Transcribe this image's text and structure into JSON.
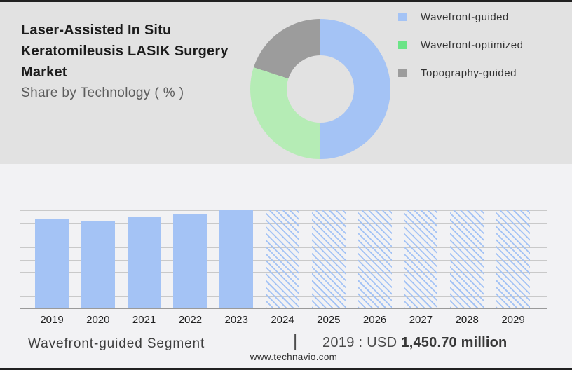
{
  "colors": {
    "accent_blue": "#a4c3f5",
    "donut_green": "#b5ecb5",
    "legend_green": "#6be487",
    "gray": "#9c9c9c",
    "header_bg": "#e2e2e2",
    "chart_bg": "#f2f2f4",
    "gridline": "#c9c9c9",
    "axis": "#9a9a9a"
  },
  "header": {
    "title": "Laser-Assisted In Situ Keratomileusis LASIK Surgery Market",
    "subtitle": "Share by Technology ( % )"
  },
  "legend": {
    "items": [
      {
        "label": "Wavefront-guided",
        "color": "#a4c3f5",
        "icon": "blue-square-swatch"
      },
      {
        "label": "Wavefront-optimized",
        "color": "#6be487",
        "icon": "green-square-swatch"
      },
      {
        "label": "Topography-guided",
        "color": "#9c9c9c",
        "icon": "gray-square-swatch"
      }
    ]
  },
  "chart_data": [
    {
      "type": "pie",
      "variant": "donut",
      "title": "Share by Technology ( % )",
      "direction": "clockwise",
      "start_angle_deg": 0,
      "slices": [
        {
          "label": "Wavefront-guided",
          "value": 50,
          "color": "#a4c3f5"
        },
        {
          "label": "Wavefront-optimized",
          "value": 30,
          "color": "#b5ecb5"
        },
        {
          "label": "Topography-guided",
          "value": 20,
          "color": "#9c9c9c"
        }
      ],
      "note": "no numeric labels shown; shares estimated from arc angles"
    },
    {
      "type": "bar",
      "categories": [
        "2019",
        "2020",
        "2021",
        "2022",
        "2023",
        "2024",
        "2025",
        "2026",
        "2027",
        "2028",
        "2029"
      ],
      "values_relative": [
        0.9,
        0.885,
        0.92,
        0.95,
        1.0,
        1.0,
        1.0,
        1.0,
        1.0,
        1.0,
        1.0
      ],
      "bar_styles": [
        "solid",
        "solid",
        "solid",
        "solid",
        "solid",
        "hatched",
        "hatched",
        "hatched",
        "hatched",
        "hatched",
        "hatched"
      ],
      "known_values": {
        "2019": "USD 1,450.70 million"
      },
      "series_label": "Wavefront-guided Segment",
      "xlabel": "",
      "ylabel": "",
      "y_axis_labels_shown": false,
      "grid": true,
      "gridline_count": 8
    }
  ],
  "footer": {
    "segment_label": "Wavefront-guided Segment",
    "separator": "|",
    "value_prefix": "2019 : USD",
    "value_bold": "1,450.70 million",
    "site": "www.technavio.com"
  }
}
